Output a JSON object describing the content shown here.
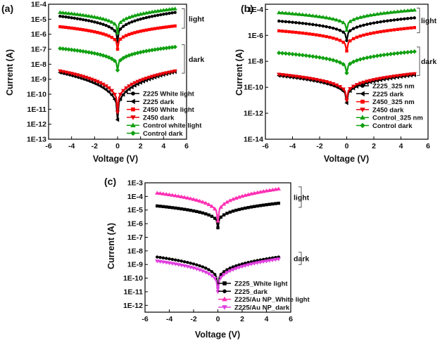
{
  "chart_data": [
    {
      "type": "line",
      "panel_label": "(a)",
      "xlabel": "Voltage (V)",
      "ylabel": "Current (A)",
      "xlim": [
        -6,
        6
      ],
      "xticks": [
        -6,
        -4,
        -2,
        0,
        2,
        4,
        6
      ],
      "ylim_log10": [
        -13,
        -4
      ],
      "ytick_labels": [
        "1E-13",
        "1E-12",
        "1E-11",
        "1E-10",
        "1E-9",
        "1E-8",
        "1E-7",
        "1E-6",
        "1E-5",
        "1E-4"
      ],
      "x_range_data": [
        -5,
        5
      ],
      "legend_position": "lower-right",
      "series": [
        {
          "name": "Z225 White light",
          "color": "#000000",
          "marker": "circle",
          "left_log10": -4.8,
          "right_log10": -4.55,
          "zero_log10": -6.5
        },
        {
          "name": "Z225 dark",
          "color": "#000000",
          "marker": "triangle-left",
          "left_log10": -8.55,
          "right_log10": -8.5,
          "zero_log10": -11.7
        },
        {
          "name": "Z450 White light",
          "color": "#ff0000",
          "marker": "square",
          "left_log10": -5.5,
          "right_log10": -5.45,
          "zero_log10": -7.0
        },
        {
          "name": "Z450 dark",
          "color": "#e8000b",
          "marker": "triangle-down",
          "left_log10": -8.45,
          "right_log10": -8.45,
          "zero_log10": -11.2
        },
        {
          "name": "Control white light",
          "color": "#10a010",
          "marker": "triangle-up",
          "left_log10": -4.55,
          "right_log10": -4.3,
          "zero_log10": -5.9
        },
        {
          "name": "Control dark",
          "color": "#10a010",
          "marker": "diamond",
          "left_log10": -6.95,
          "right_log10": -6.85,
          "zero_log10": -8.4
        }
      ],
      "annotations": [
        {
          "text": "light",
          "ymin_log10": -4.3,
          "ymax_log10": -5.6
        },
        {
          "text": "dark",
          "ymin_log10": -6.7,
          "ymax_log10": -8.6
        }
      ]
    },
    {
      "type": "line",
      "panel_label": "(b)",
      "xlabel": "Voltage (V)",
      "ylabel": "Current (A)",
      "xlim": [
        -6,
        6
      ],
      "xticks": [
        -6,
        -4,
        -2,
        0,
        2,
        4,
        6
      ],
      "ylim_log10": [
        -14,
        -3.6
      ],
      "ytick_values_log10": [
        -14,
        -12,
        -10,
        -8,
        -6,
        -4
      ],
      "ytick_labels": [
        "1E-14",
        "1E-12",
        "1E-10",
        "1E-8",
        "1E-6",
        "1E-4"
      ],
      "x_range_data": [
        -5,
        5
      ],
      "legend_position": "lower-right",
      "series": [
        {
          "name": "Z225_325 nm",
          "color": "#000000",
          "marker": "circle",
          "left_log10": -4.9,
          "right_log10": -4.65,
          "zero_log10": -6.4
        },
        {
          "name": "Z225 dark",
          "color": "#000000",
          "marker": "triangle-left",
          "left_log10": -9.1,
          "right_log10": -9.05,
          "zero_log10": -11.2
        },
        {
          "name": "Z450_325 nm",
          "color": "#ff0000",
          "marker": "square",
          "left_log10": -5.65,
          "right_log10": -5.4,
          "zero_log10": -7.2
        },
        {
          "name": "Z450 dark",
          "color": "#e8000b",
          "marker": "triangle-down",
          "left_log10": -9.0,
          "right_log10": -8.95,
          "zero_log10": -11.0
        },
        {
          "name": "Control_325 nm",
          "color": "#10a010",
          "marker": "triangle-up",
          "left_log10": -4.25,
          "right_log10": -4.05,
          "zero_log10": -5.6
        },
        {
          "name": "Control dark",
          "color": "#10a010",
          "marker": "diamond",
          "left_log10": -7.35,
          "right_log10": -7.25,
          "zero_log10": -8.9
        }
      ],
      "annotations": [
        {
          "text": "light",
          "ymin_log10": -3.9,
          "ymax_log10": -5.8
        },
        {
          "text": "dark",
          "ymin_log10": -6.9,
          "ymax_log10": -9.1
        }
      ]
    },
    {
      "type": "line",
      "panel_label": "(c)",
      "xlabel": "Voltage (V)",
      "ylabel": "Current (A)",
      "xlim": [
        -6,
        6
      ],
      "xticks": [
        -6,
        -4,
        -2,
        0,
        2,
        4,
        6
      ],
      "ylim_log10": [
        -12.5,
        -3
      ],
      "ytick_labels": [
        "1E-12",
        "1E-11",
        "1E-10",
        "1E-9",
        "1E-8",
        "1E-7",
        "1E-6",
        "1E-5",
        "1E-4",
        "1E-3"
      ],
      "x_range_data": [
        -5,
        5
      ],
      "legend_position": "lower-right",
      "series": [
        {
          "name": "Z225_White light",
          "color": "#000000",
          "marker": "square",
          "left_log10": -4.7,
          "right_log10": -4.5,
          "zero_log10": -6.3
        },
        {
          "name": "Z225_dark",
          "color": "#000000",
          "marker": "circle",
          "left_log10": -8.45,
          "right_log10": -8.45,
          "zero_log10": -10.7
        },
        {
          "name": "Z225/Au NP_White light",
          "color": "#ff2fb4",
          "marker": "triangle-up",
          "left_log10": -3.75,
          "right_log10": -3.45,
          "zero_log10": -5.8
        },
        {
          "name": "Z225/Au NP_dark",
          "color": "#e040e0",
          "marker": "triangle-down",
          "left_log10": -8.75,
          "right_log10": -8.6,
          "zero_log10": -11.0
        }
      ],
      "annotations": [
        {
          "text": "light",
          "ymin_log10": -3.3,
          "ymax_log10": -4.8
        },
        {
          "text": "dark",
          "ymin_log10": -8.1,
          "ymax_log10": -9.0
        }
      ]
    }
  ]
}
